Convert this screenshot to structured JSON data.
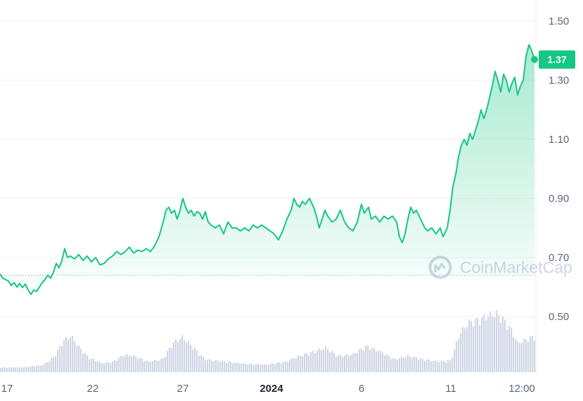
{
  "chart_data": {
    "type": "line",
    "y_ticks": [
      {
        "label": "1.50",
        "value": 1.5
      },
      {
        "label": "1.30",
        "value": 1.3
      },
      {
        "label": "1.10",
        "value": 1.1
      },
      {
        "label": "0.90",
        "value": 0.9
      },
      {
        "label": "0.70",
        "value": 0.7
      },
      {
        "label": "0.50",
        "value": 0.5
      }
    ],
    "x_ticks": [
      {
        "label": "17",
        "bold": false
      },
      {
        "label": "22",
        "bold": false
      },
      {
        "label": "27",
        "bold": false
      },
      {
        "label": "2024",
        "bold": true
      },
      {
        "label": "6",
        "bold": false
      },
      {
        "label": "11",
        "bold": false
      },
      {
        "label": "12:00",
        "bold": false
      }
    ],
    "ylim": [
      0.32,
      1.52
    ],
    "reference_price": 0.64,
    "current_price": 1.37,
    "current_price_label": "1.37",
    "price_series": [
      {
        "x": 0,
        "y": 0.645
      },
      {
        "x": 4,
        "y": 0.63
      },
      {
        "x": 8,
        "y": 0.625
      },
      {
        "x": 12,
        "y": 0.62
      },
      {
        "x": 16,
        "y": 0.605
      },
      {
        "x": 20,
        "y": 0.615
      },
      {
        "x": 24,
        "y": 0.6
      },
      {
        "x": 28,
        "y": 0.612
      },
      {
        "x": 32,
        "y": 0.598
      },
      {
        "x": 36,
        "y": 0.61
      },
      {
        "x": 40,
        "y": 0.59
      },
      {
        "x": 44,
        "y": 0.575
      },
      {
        "x": 48,
        "y": 0.59
      },
      {
        "x": 52,
        "y": 0.585
      },
      {
        "x": 56,
        "y": 0.6
      },
      {
        "x": 60,
        "y": 0.615
      },
      {
        "x": 64,
        "y": 0.625
      },
      {
        "x": 68,
        "y": 0.64
      },
      {
        "x": 72,
        "y": 0.63
      },
      {
        "x": 76,
        "y": 0.65
      },
      {
        "x": 80,
        "y": 0.68
      },
      {
        "x": 84,
        "y": 0.665
      },
      {
        "x": 88,
        "y": 0.69
      },
      {
        "x": 92,
        "y": 0.73
      },
      {
        "x": 96,
        "y": 0.7
      },
      {
        "x": 100,
        "y": 0.705
      },
      {
        "x": 106,
        "y": 0.695
      },
      {
        "x": 112,
        "y": 0.71
      },
      {
        "x": 118,
        "y": 0.69
      },
      {
        "x": 124,
        "y": 0.705
      },
      {
        "x": 130,
        "y": 0.685
      },
      {
        "x": 136,
        "y": 0.7
      },
      {
        "x": 142,
        "y": 0.675
      },
      {
        "x": 148,
        "y": 0.68
      },
      {
        "x": 154,
        "y": 0.695
      },
      {
        "x": 160,
        "y": 0.705
      },
      {
        "x": 166,
        "y": 0.72
      },
      {
        "x": 172,
        "y": 0.71
      },
      {
        "x": 178,
        "y": 0.72
      },
      {
        "x": 184,
        "y": 0.735
      },
      {
        "x": 190,
        "y": 0.715
      },
      {
        "x": 196,
        "y": 0.725
      },
      {
        "x": 202,
        "y": 0.72
      },
      {
        "x": 208,
        "y": 0.73
      },
      {
        "x": 214,
        "y": 0.72
      },
      {
        "x": 220,
        "y": 0.74
      },
      {
        "x": 226,
        "y": 0.77
      },
      {
        "x": 232,
        "y": 0.82
      },
      {
        "x": 236,
        "y": 0.86
      },
      {
        "x": 240,
        "y": 0.87
      },
      {
        "x": 244,
        "y": 0.85
      },
      {
        "x": 248,
        "y": 0.86
      },
      {
        "x": 252,
        "y": 0.83
      },
      {
        "x": 256,
        "y": 0.86
      },
      {
        "x": 260,
        "y": 0.9
      },
      {
        "x": 264,
        "y": 0.87
      },
      {
        "x": 268,
        "y": 0.85
      },
      {
        "x": 272,
        "y": 0.86
      },
      {
        "x": 276,
        "y": 0.84
      },
      {
        "x": 280,
        "y": 0.855
      },
      {
        "x": 284,
        "y": 0.85
      },
      {
        "x": 288,
        "y": 0.83
      },
      {
        "x": 292,
        "y": 0.855
      },
      {
        "x": 296,
        "y": 0.82
      },
      {
        "x": 300,
        "y": 0.81
      },
      {
        "x": 306,
        "y": 0.8
      },
      {
        "x": 312,
        "y": 0.81
      },
      {
        "x": 318,
        "y": 0.78
      },
      {
        "x": 324,
        "y": 0.82
      },
      {
        "x": 330,
        "y": 0.8
      },
      {
        "x": 336,
        "y": 0.8
      },
      {
        "x": 342,
        "y": 0.79
      },
      {
        "x": 348,
        "y": 0.8
      },
      {
        "x": 354,
        "y": 0.79
      },
      {
        "x": 360,
        "y": 0.81
      },
      {
        "x": 366,
        "y": 0.8
      },
      {
        "x": 372,
        "y": 0.81
      },
      {
        "x": 378,
        "y": 0.8
      },
      {
        "x": 384,
        "y": 0.79
      },
      {
        "x": 390,
        "y": 0.78
      },
      {
        "x": 396,
        "y": 0.76
      },
      {
        "x": 402,
        "y": 0.79
      },
      {
        "x": 408,
        "y": 0.83
      },
      {
        "x": 414,
        "y": 0.86
      },
      {
        "x": 418,
        "y": 0.9
      },
      {
        "x": 422,
        "y": 0.88
      },
      {
        "x": 426,
        "y": 0.87
      },
      {
        "x": 430,
        "y": 0.89
      },
      {
        "x": 434,
        "y": 0.88
      },
      {
        "x": 440,
        "y": 0.9
      },
      {
        "x": 446,
        "y": 0.87
      },
      {
        "x": 450,
        "y": 0.84
      },
      {
        "x": 454,
        "y": 0.8
      },
      {
        "x": 458,
        "y": 0.83
      },
      {
        "x": 462,
        "y": 0.86
      },
      {
        "x": 466,
        "y": 0.84
      },
      {
        "x": 472,
        "y": 0.82
      },
      {
        "x": 478,
        "y": 0.83
      },
      {
        "x": 484,
        "y": 0.86
      },
      {
        "x": 490,
        "y": 0.82
      },
      {
        "x": 496,
        "y": 0.8
      },
      {
        "x": 502,
        "y": 0.79
      },
      {
        "x": 508,
        "y": 0.82
      },
      {
        "x": 514,
        "y": 0.88
      },
      {
        "x": 518,
        "y": 0.85
      },
      {
        "x": 524,
        "y": 0.87
      },
      {
        "x": 528,
        "y": 0.83
      },
      {
        "x": 534,
        "y": 0.84
      },
      {
        "x": 540,
        "y": 0.82
      },
      {
        "x": 546,
        "y": 0.84
      },
      {
        "x": 552,
        "y": 0.83
      },
      {
        "x": 558,
        "y": 0.84
      },
      {
        "x": 564,
        "y": 0.82
      },
      {
        "x": 568,
        "y": 0.77
      },
      {
        "x": 572,
        "y": 0.75
      },
      {
        "x": 576,
        "y": 0.78
      },
      {
        "x": 580,
        "y": 0.83
      },
      {
        "x": 584,
        "y": 0.87
      },
      {
        "x": 588,
        "y": 0.85
      },
      {
        "x": 592,
        "y": 0.86
      },
      {
        "x": 596,
        "y": 0.84
      },
      {
        "x": 600,
        "y": 0.82
      },
      {
        "x": 604,
        "y": 0.8
      },
      {
        "x": 608,
        "y": 0.79
      },
      {
        "x": 614,
        "y": 0.8
      },
      {
        "x": 620,
        "y": 0.78
      },
      {
        "x": 626,
        "y": 0.8
      },
      {
        "x": 630,
        "y": 0.77
      },
      {
        "x": 636,
        "y": 0.8
      },
      {
        "x": 640,
        "y": 0.86
      },
      {
        "x": 644,
        "y": 0.94
      },
      {
        "x": 648,
        "y": 0.98
      },
      {
        "x": 652,
        "y": 1.04
      },
      {
        "x": 656,
        "y": 1.08
      },
      {
        "x": 660,
        "y": 1.1
      },
      {
        "x": 664,
        "y": 1.08
      },
      {
        "x": 668,
        "y": 1.12
      },
      {
        "x": 672,
        "y": 1.1
      },
      {
        "x": 676,
        "y": 1.13
      },
      {
        "x": 680,
        "y": 1.16
      },
      {
        "x": 684,
        "y": 1.2
      },
      {
        "x": 688,
        "y": 1.17
      },
      {
        "x": 692,
        "y": 1.2
      },
      {
        "x": 696,
        "y": 1.24
      },
      {
        "x": 700,
        "y": 1.28
      },
      {
        "x": 704,
        "y": 1.33
      },
      {
        "x": 708,
        "y": 1.3
      },
      {
        "x": 712,
        "y": 1.26
      },
      {
        "x": 716,
        "y": 1.32
      },
      {
        "x": 720,
        "y": 1.3
      },
      {
        "x": 724,
        "y": 1.26
      },
      {
        "x": 728,
        "y": 1.29
      },
      {
        "x": 732,
        "y": 1.31
      },
      {
        "x": 736,
        "y": 1.25
      },
      {
        "x": 740,
        "y": 1.28
      },
      {
        "x": 744,
        "y": 1.3
      },
      {
        "x": 748,
        "y": 1.38
      },
      {
        "x": 752,
        "y": 1.42
      },
      {
        "x": 756,
        "y": 1.4
      },
      {
        "x": 760,
        "y": 1.37
      }
    ],
    "volume_series": [
      {
        "x": 0,
        "v": 0.08
      },
      {
        "x": 30,
        "v": 0.08
      },
      {
        "x": 60,
        "v": 0.12
      },
      {
        "x": 75,
        "v": 0.25
      },
      {
        "x": 90,
        "v": 0.55
      },
      {
        "x": 100,
        "v": 0.62
      },
      {
        "x": 110,
        "v": 0.45
      },
      {
        "x": 125,
        "v": 0.25
      },
      {
        "x": 145,
        "v": 0.15
      },
      {
        "x": 160,
        "v": 0.18
      },
      {
        "x": 175,
        "v": 0.3
      },
      {
        "x": 190,
        "v": 0.28
      },
      {
        "x": 210,
        "v": 0.18
      },
      {
        "x": 230,
        "v": 0.22
      },
      {
        "x": 245,
        "v": 0.5
      },
      {
        "x": 258,
        "v": 0.6
      },
      {
        "x": 272,
        "v": 0.45
      },
      {
        "x": 290,
        "v": 0.22
      },
      {
        "x": 320,
        "v": 0.18
      },
      {
        "x": 350,
        "v": 0.14
      },
      {
        "x": 380,
        "v": 0.13
      },
      {
        "x": 405,
        "v": 0.18
      },
      {
        "x": 425,
        "v": 0.28
      },
      {
        "x": 445,
        "v": 0.35
      },
      {
        "x": 462,
        "v": 0.42
      },
      {
        "x": 480,
        "v": 0.28
      },
      {
        "x": 500,
        "v": 0.3
      },
      {
        "x": 520,
        "v": 0.45
      },
      {
        "x": 540,
        "v": 0.35
      },
      {
        "x": 560,
        "v": 0.22
      },
      {
        "x": 580,
        "v": 0.28
      },
      {
        "x": 600,
        "v": 0.22
      },
      {
        "x": 625,
        "v": 0.18
      },
      {
        "x": 640,
        "v": 0.2
      },
      {
        "x": 652,
        "v": 0.65
      },
      {
        "x": 665,
        "v": 0.85
      },
      {
        "x": 680,
        "v": 0.9
      },
      {
        "x": 695,
        "v": 0.98
      },
      {
        "x": 705,
        "v": 1.0
      },
      {
        "x": 715,
        "v": 0.9
      },
      {
        "x": 725,
        "v": 0.75
      },
      {
        "x": 735,
        "v": 0.5
      },
      {
        "x": 745,
        "v": 0.55
      },
      {
        "x": 760,
        "v": 0.62
      }
    ],
    "colors": {
      "up_line": "#16c784",
      "down_line": "#ea3943",
      "area_fill": "#16c784",
      "volume": "#cfd6e4",
      "reference_dotted": "#a6b0c3",
      "badge": "#16c784",
      "grid": "#eff2f5"
    }
  },
  "watermark": {
    "text": "CoinMarketCap",
    "icon": "coinmarketcap-logo-icon"
  }
}
